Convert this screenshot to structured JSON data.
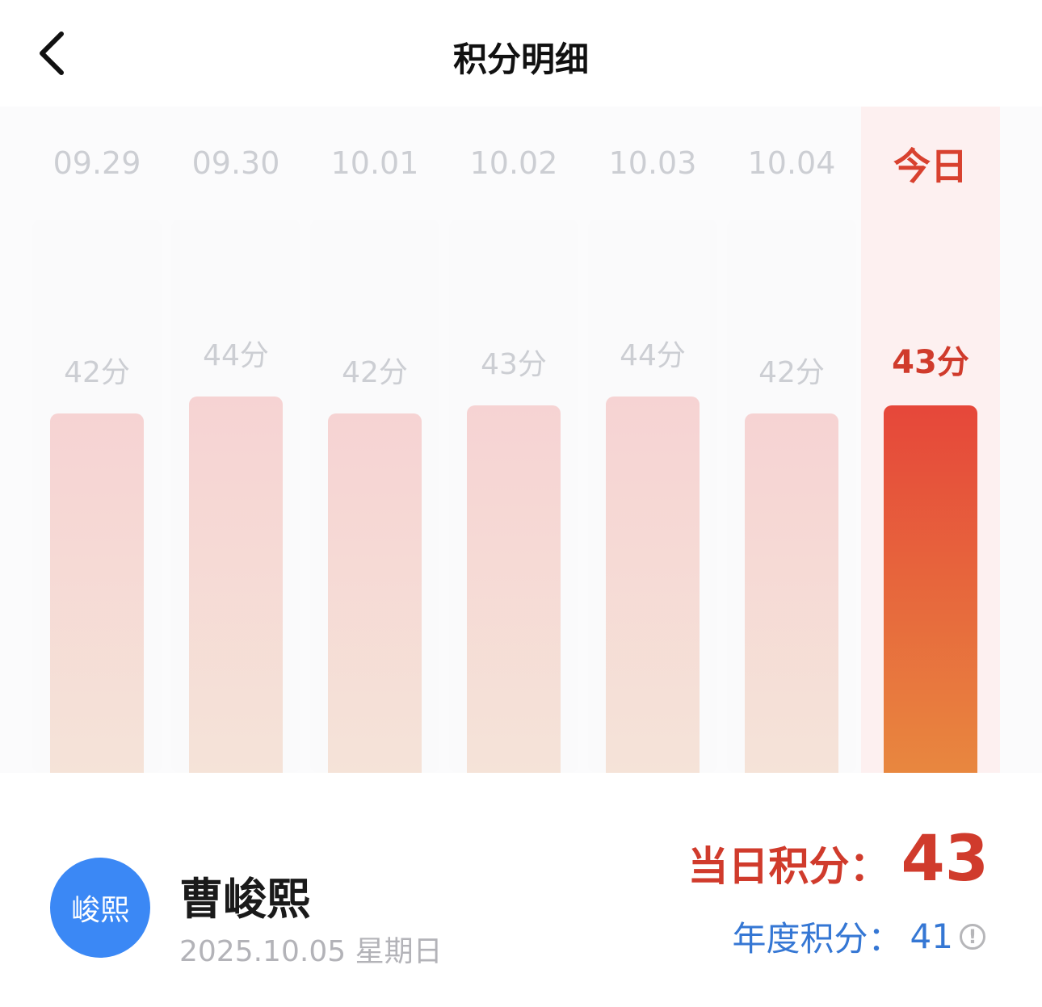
{
  "header": {
    "title": "积分明细",
    "back_icon": "chevron-left-icon"
  },
  "colors": {
    "accent": "#d03b2c",
    "blue": "#3577d4",
    "avatar": "#3b88f5"
  },
  "chart_data": {
    "type": "bar",
    "categories": [
      "09.29",
      "09.30",
      "10.01",
      "10.02",
      "10.03",
      "10.04",
      "今日"
    ],
    "values": [
      42,
      44,
      42,
      43,
      44,
      42,
      43
    ],
    "labels": [
      "42分",
      "44分",
      "42分",
      "43分",
      "44分",
      "42分",
      "43分"
    ],
    "highlight": "今日"
  },
  "user": {
    "avatar_text": "峻熙",
    "name": "曹峻熙",
    "date": "2025.10.05 星期日"
  },
  "score": {
    "daily_label": "当日积分：",
    "daily_value": "43",
    "yearly_label": "年度积分：",
    "yearly_value": "41",
    "info_icon": "info-circle-icon"
  }
}
